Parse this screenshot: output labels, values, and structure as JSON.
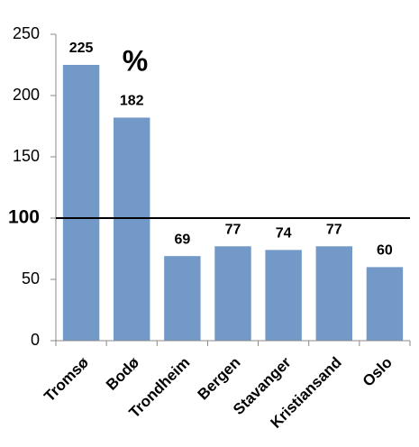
{
  "chart_data": {
    "type": "bar",
    "annotation": "%",
    "categories": [
      "Tromsø",
      "Bodø",
      "Trondheim",
      "Bergen",
      "Stavanger",
      "Kristiansand",
      "Oslo"
    ],
    "values": [
      225,
      182,
      69,
      77,
      74,
      77,
      60
    ],
    "color": "#7399c9",
    "ylim": [
      0,
      250
    ],
    "yticks": [
      0,
      50,
      100,
      150,
      200,
      250
    ],
    "reference_line": 100,
    "grid": false
  }
}
